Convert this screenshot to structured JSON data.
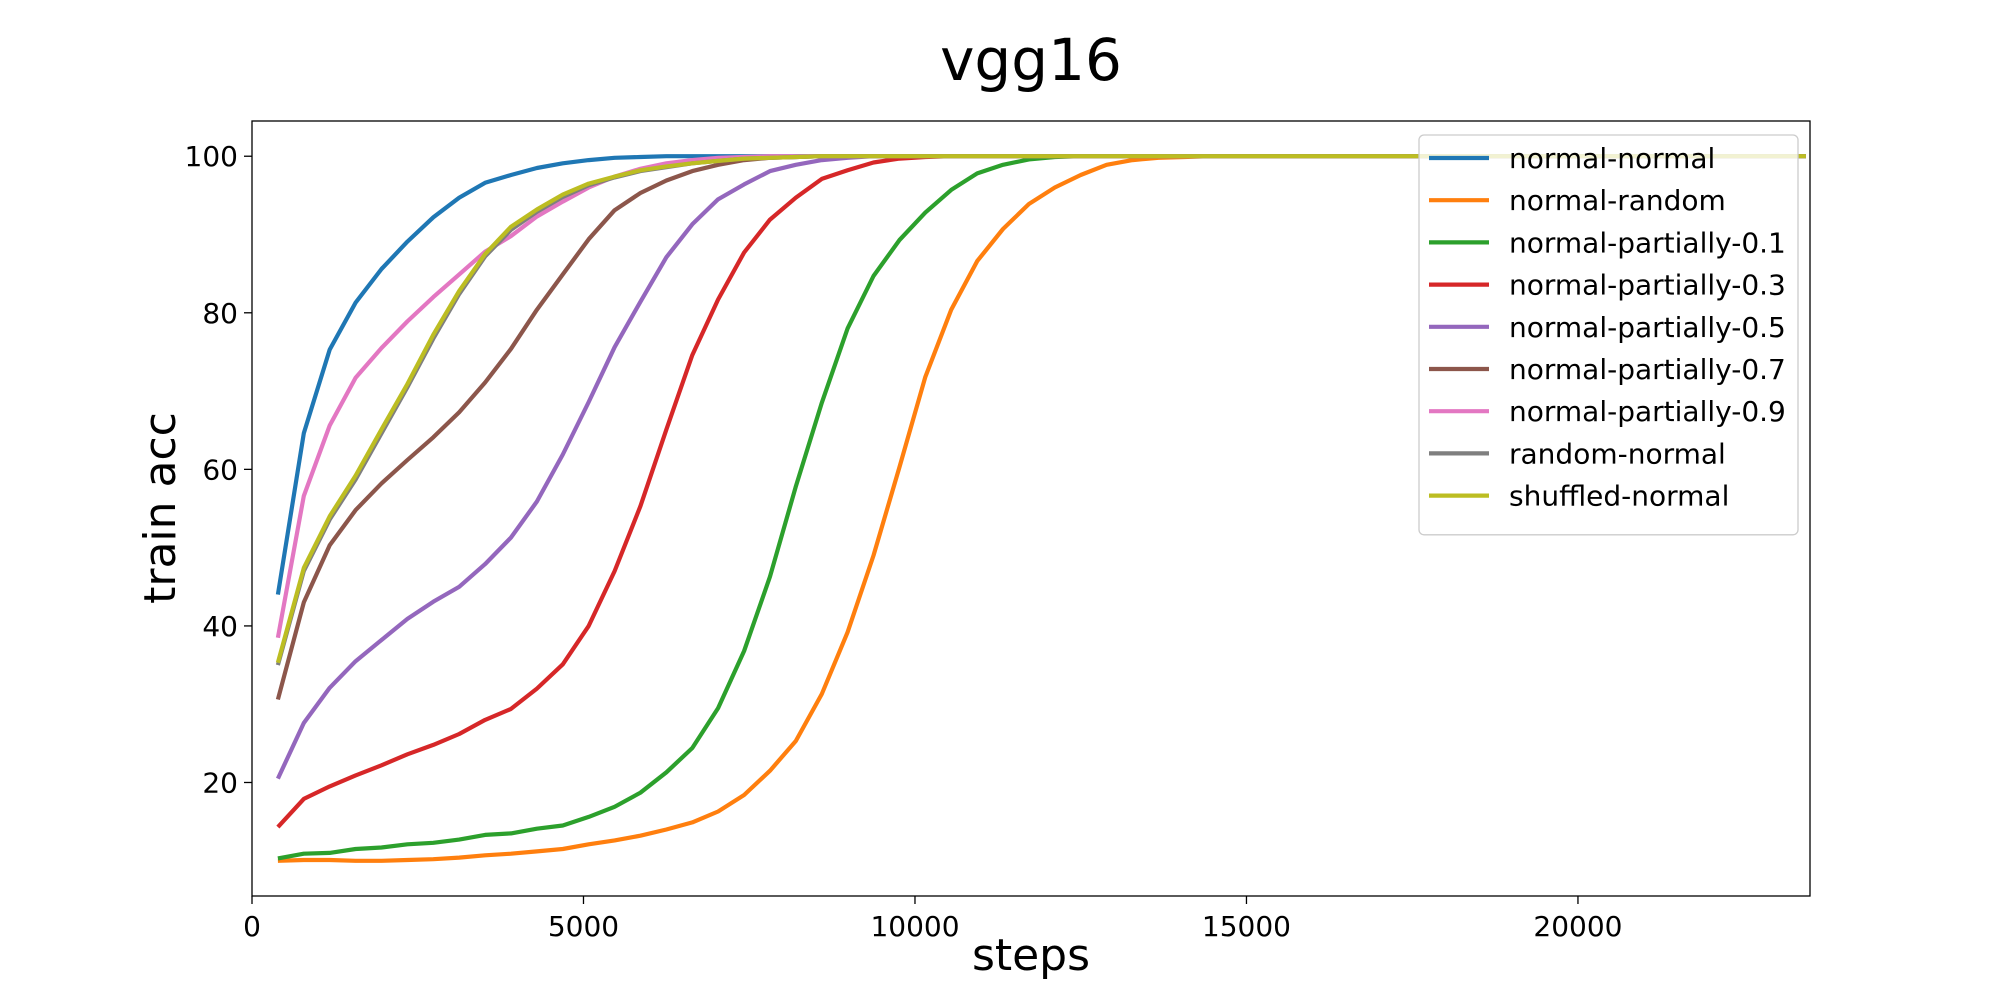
{
  "chart_data": {
    "type": "line",
    "title": "vgg16",
    "xlabel": "steps",
    "ylabel": "train acc",
    "xlim": [
      0,
      23500
    ],
    "ylim": [
      5.5,
      104.5
    ],
    "xticks": [
      0,
      5000,
      10000,
      15000,
      20000
    ],
    "xtick_labels": [
      "0",
      "5000",
      "10000",
      "15000",
      "20000"
    ],
    "yticks": [
      20,
      40,
      60,
      80,
      100
    ],
    "ytick_labels": [
      "20",
      "40",
      "60",
      "80",
      "100"
    ],
    "grid": false,
    "legend_position": "top-right",
    "x": [
      391,
      781,
      1172,
      1563,
      1953,
      2344,
      2734,
      3125,
      3516,
      3906,
      4297,
      4688,
      5078,
      5469,
      5859,
      6250,
      6641,
      7031,
      7422,
      7813,
      8203,
      8594,
      8984,
      9375,
      9766,
      10156,
      10547,
      10938,
      11328,
      11719,
      12109,
      12500,
      12891,
      13281,
      13672,
      14063,
      14453,
      14844,
      15234,
      15625,
      16016,
      16406,
      16797,
      17188,
      17578,
      17969,
      18359,
      18750,
      19141,
      19531,
      19922,
      20313,
      20703,
      21094,
      21484,
      21875,
      22266,
      22656,
      23047,
      23438
    ],
    "series": [
      {
        "name": "normal-normal",
        "color": "#1f77b4",
        "values": [
          44.0,
          64.6,
          75.3,
          81.3,
          85.6,
          89.1,
          92.2,
          94.7,
          96.6,
          97.6,
          98.5,
          99.1,
          99.5,
          99.8,
          99.9,
          100.0,
          100.0,
          100.0,
          100.0,
          100.0,
          100.0,
          100.0,
          100.0,
          100.0,
          100.0,
          100.0,
          100.0,
          100.0,
          100.0,
          100.0,
          100.0,
          100.0,
          100.0,
          100.0,
          100.0,
          100.0,
          100.0,
          100.0,
          100.0,
          100.0,
          100.0,
          100.0,
          100.0,
          100.0,
          100.0,
          100.0,
          100.0,
          100.0,
          100.0,
          100.0,
          100.0,
          100.0,
          100.0,
          100.0,
          100.0,
          100.0,
          100.0,
          100.0,
          100.0,
          100.0
        ]
      },
      {
        "name": "normal-random",
        "color": "#ff7f0e",
        "values": [
          10.0,
          10.1,
          10.1,
          10.0,
          10.0,
          10.1,
          10.2,
          10.4,
          10.7,
          10.9,
          11.2,
          11.5,
          12.1,
          12.6,
          13.2,
          14.0,
          14.9,
          16.3,
          18.4,
          21.5,
          25.3,
          31.3,
          39.2,
          49.0,
          60.3,
          71.8,
          80.4,
          86.6,
          90.7,
          93.9,
          96.0,
          97.6,
          98.9,
          99.5,
          99.8,
          99.9,
          100.0,
          100.0,
          100.0,
          100.0,
          100.0,
          100.0,
          100.0,
          100.0,
          100.0,
          100.0,
          100.0,
          100.0,
          100.0,
          100.0,
          100.0,
          100.0,
          100.0,
          100.0,
          100.0,
          100.0,
          100.0,
          100.0,
          100.0,
          100.0
        ]
      },
      {
        "name": "normal-partially-0.1",
        "color": "#2ca02c",
        "values": [
          10.3,
          10.9,
          11.0,
          11.5,
          11.7,
          12.1,
          12.3,
          12.7,
          13.3,
          13.5,
          14.1,
          14.5,
          15.6,
          16.9,
          18.7,
          21.3,
          24.4,
          29.5,
          36.8,
          46.3,
          57.8,
          68.5,
          78.0,
          84.7,
          89.3,
          92.8,
          95.7,
          97.8,
          98.9,
          99.6,
          99.9,
          100.0,
          100.0,
          100.0,
          100.0,
          100.0,
          100.0,
          100.0,
          100.0,
          100.0,
          100.0,
          100.0,
          100.0,
          100.0,
          100.0,
          100.0,
          100.0,
          100.0,
          100.0,
          100.0,
          100.0,
          100.0,
          100.0,
          100.0,
          100.0,
          100.0,
          100.0,
          100.0,
          100.0,
          100.0
        ]
      },
      {
        "name": "normal-partially-0.3",
        "color": "#d62728",
        "values": [
          14.3,
          17.9,
          19.5,
          20.9,
          22.2,
          23.6,
          24.8,
          26.2,
          28.0,
          29.4,
          32.0,
          35.1,
          40.0,
          47.0,
          55.3,
          65.1,
          74.6,
          81.7,
          87.7,
          91.9,
          94.7,
          97.1,
          98.2,
          99.2,
          99.7,
          99.9,
          100.0,
          100.0,
          100.0,
          100.0,
          100.0,
          100.0,
          100.0,
          100.0,
          100.0,
          100.0,
          100.0,
          100.0,
          100.0,
          100.0,
          100.0,
          100.0,
          100.0,
          100.0,
          100.0,
          100.0,
          100.0,
          100.0,
          100.0,
          100.0,
          100.0,
          100.0,
          100.0,
          100.0,
          100.0,
          100.0,
          100.0,
          100.0,
          100.0,
          100.0
        ]
      },
      {
        "name": "normal-partially-0.5",
        "color": "#9467bd",
        "values": [
          20.5,
          27.6,
          32.1,
          35.5,
          38.2,
          40.9,
          43.1,
          45.0,
          47.9,
          51.3,
          55.9,
          61.9,
          68.6,
          75.6,
          81.4,
          87.1,
          91.3,
          94.5,
          96.4,
          98.1,
          98.9,
          99.5,
          99.8,
          100.0,
          100.0,
          100.0,
          100.0,
          100.0,
          100.0,
          100.0,
          100.0,
          100.0,
          100.0,
          100.0,
          100.0,
          100.0,
          100.0,
          100.0,
          100.0,
          100.0,
          100.0,
          100.0,
          100.0,
          100.0,
          100.0,
          100.0,
          100.0,
          100.0,
          100.0,
          100.0,
          100.0,
          100.0,
          100.0,
          100.0,
          100.0,
          100.0,
          100.0,
          100.0,
          100.0,
          100.0
        ]
      },
      {
        "name": "normal-partially-0.7",
        "color": "#8c564b",
        "values": [
          30.6,
          43.0,
          50.3,
          54.8,
          58.2,
          61.2,
          64.1,
          67.3,
          71.1,
          75.4,
          80.4,
          84.9,
          89.4,
          93.1,
          95.3,
          96.9,
          98.1,
          98.9,
          99.5,
          99.8,
          99.9,
          100.0,
          100.0,
          100.0,
          100.0,
          100.0,
          100.0,
          100.0,
          100.0,
          100.0,
          100.0,
          100.0,
          100.0,
          100.0,
          100.0,
          100.0,
          100.0,
          100.0,
          100.0,
          100.0,
          100.0,
          100.0,
          100.0,
          100.0,
          100.0,
          100.0,
          100.0,
          100.0,
          100.0,
          100.0,
          100.0,
          100.0,
          100.0,
          100.0,
          100.0,
          100.0,
          100.0,
          100.0,
          100.0,
          100.0
        ]
      },
      {
        "name": "normal-partially-0.9",
        "color": "#e377c2",
        "values": [
          38.5,
          56.6,
          65.6,
          71.7,
          75.5,
          78.9,
          82.0,
          84.9,
          87.8,
          89.8,
          92.3,
          94.2,
          96.0,
          97.4,
          98.4,
          99.1,
          99.5,
          99.8,
          99.9,
          100.0,
          100.0,
          100.0,
          100.0,
          100.0,
          100.0,
          100.0,
          100.0,
          100.0,
          100.0,
          100.0,
          100.0,
          100.0,
          100.0,
          100.0,
          100.0,
          100.0,
          100.0,
          100.0,
          100.0,
          100.0,
          100.0,
          100.0,
          100.0,
          100.0,
          100.0,
          100.0,
          100.0,
          100.0,
          100.0,
          100.0,
          100.0,
          100.0,
          100.0,
          100.0,
          100.0,
          100.0,
          100.0,
          100.0,
          100.0,
          100.0
        ]
      },
      {
        "name": "random-normal",
        "color": "#7f7f7f",
        "values": [
          35.0,
          47.0,
          53.6,
          58.7,
          64.6,
          70.5,
          76.7,
          82.4,
          87.2,
          90.6,
          92.9,
          94.8,
          96.3,
          97.3,
          98.1,
          98.6,
          99.1,
          99.4,
          99.7,
          99.8,
          99.9,
          100.0,
          100.0,
          100.0,
          100.0,
          100.0,
          100.0,
          100.0,
          100.0,
          100.0,
          100.0,
          100.0,
          100.0,
          100.0,
          100.0,
          100.0,
          100.0,
          100.0,
          100.0,
          100.0,
          100.0,
          100.0,
          100.0,
          100.0,
          100.0,
          100.0,
          100.0,
          100.0,
          100.0,
          100.0,
          100.0,
          100.0,
          100.0,
          100.0,
          100.0,
          100.0,
          100.0,
          100.0,
          100.0,
          100.0
        ]
      },
      {
        "name": "shuffled-normal",
        "color": "#bcbd22",
        "values": [
          35.3,
          47.4,
          54.0,
          59.2,
          65.1,
          70.9,
          77.2,
          82.8,
          87.5,
          91.0,
          93.2,
          95.1,
          96.5,
          97.4,
          98.2,
          98.7,
          99.1,
          99.4,
          99.7,
          99.8,
          99.9,
          100.0,
          100.0,
          100.0,
          100.0,
          100.0,
          100.0,
          100.0,
          100.0,
          100.0,
          100.0,
          100.0,
          100.0,
          100.0,
          100.0,
          100.0,
          100.0,
          100.0,
          100.0,
          100.0,
          100.0,
          100.0,
          100.0,
          100.0,
          100.0,
          100.0,
          100.0,
          100.0,
          100.0,
          100.0,
          100.0,
          100.0,
          100.0,
          100.0,
          100.0,
          100.0,
          100.0,
          100.0,
          100.0,
          100.0
        ]
      }
    ]
  }
}
